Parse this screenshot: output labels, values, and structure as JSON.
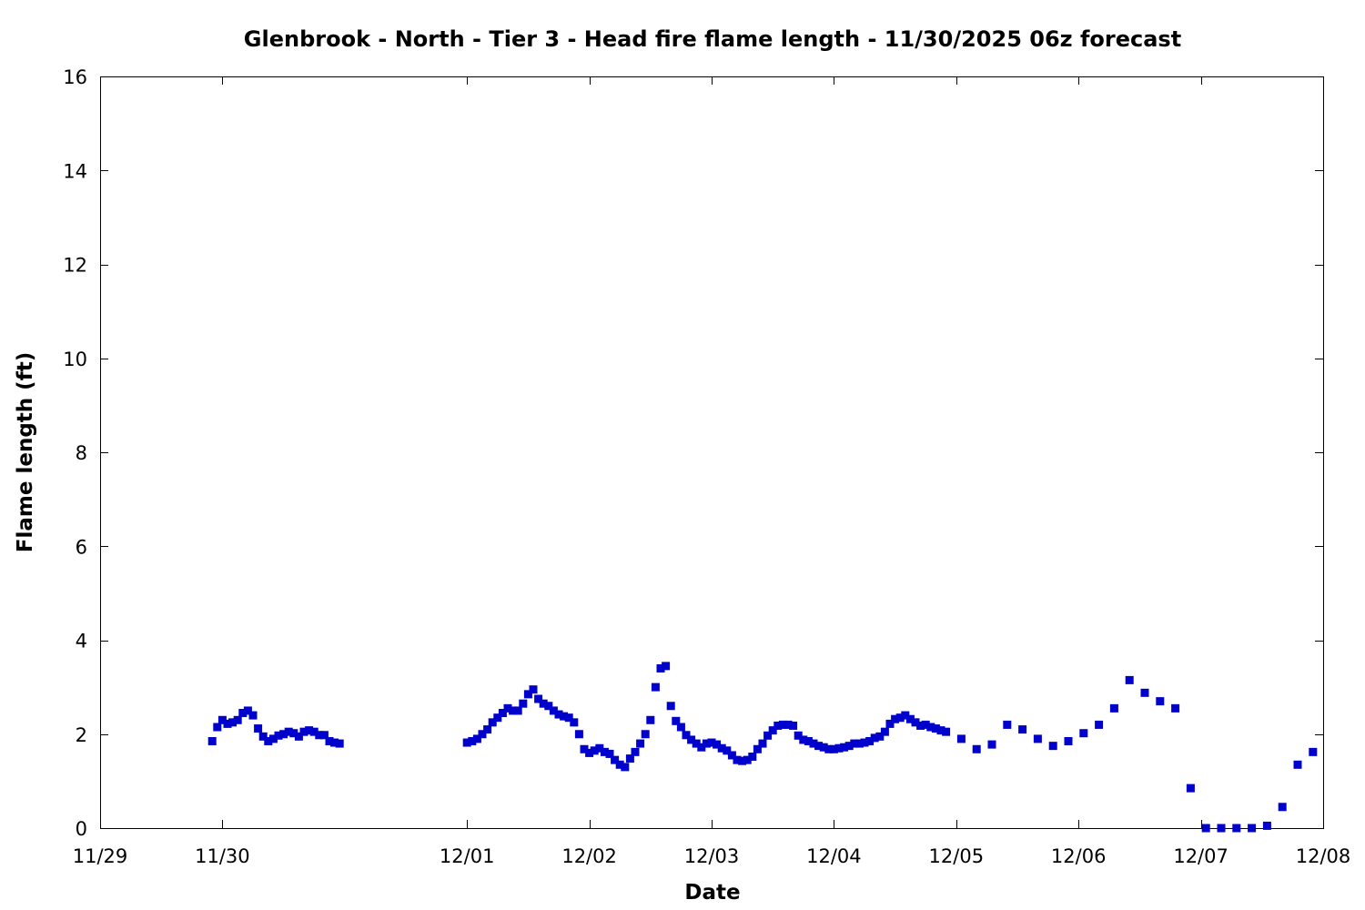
{
  "chart_data": {
    "type": "scatter",
    "title": "Glenbrook - North - Tier 3 - Head fire flame length - 11/30/2025 06z forecast",
    "xlabel": "Date",
    "ylabel": "Flame length (ft)",
    "xlim": [
      "11/29",
      "12/08"
    ],
    "ylim": [
      0,
      16
    ],
    "x_ticks": [
      "11/29",
      "11/30",
      "12/01",
      "12/02",
      "12/03",
      "12/04",
      "12/05",
      "12/06",
      "12/07",
      "12/08"
    ],
    "y_ticks": [
      0,
      2,
      4,
      6,
      8,
      10,
      12,
      14,
      16
    ],
    "grid": false,
    "legend": "none",
    "marker_color": "#0000cc",
    "marker": "square",
    "series": [
      {
        "points": [
          [
            "11/29 22:00",
            1.85
          ],
          [
            "11/29 23:00",
            2.15
          ],
          [
            "11/30 00:00",
            2.3
          ],
          [
            "11/30 01:00",
            2.22
          ],
          [
            "11/30 02:00",
            2.25
          ],
          [
            "11/30 03:00",
            2.3
          ],
          [
            "11/30 04:00",
            2.45
          ],
          [
            "11/30 05:00",
            2.5
          ],
          [
            "11/30 06:00",
            2.4
          ],
          [
            "11/30 07:00",
            2.12
          ],
          [
            "11/30 08:00",
            1.95
          ],
          [
            "11/30 09:00",
            1.85
          ],
          [
            "11/30 10:00",
            1.9
          ],
          [
            "11/30 11:00",
            1.97
          ],
          [
            "11/30 12:00",
            2.0
          ],
          [
            "11/30 13:00",
            2.05
          ],
          [
            "11/30 14:00",
            2.02
          ],
          [
            "11/30 15:00",
            1.95
          ],
          [
            "11/30 16:00",
            2.05
          ],
          [
            "11/30 17:00",
            2.08
          ],
          [
            "11/30 18:00",
            2.05
          ],
          [
            "11/30 19:00",
            1.98
          ],
          [
            "11/30 20:00",
            1.98
          ],
          [
            "11/30 21:00",
            1.85
          ],
          [
            "11/30 22:00",
            1.82
          ],
          [
            "11/30 23:00",
            1.8
          ],
          [
            "12/01 00:00",
            1.82
          ],
          [
            "12/01 01:00",
            1.85
          ],
          [
            "12/01 02:00",
            1.9
          ],
          [
            "12/01 03:00",
            2.0
          ],
          [
            "12/01 04:00",
            2.1
          ],
          [
            "12/01 05:00",
            2.25
          ],
          [
            "12/01 06:00",
            2.35
          ],
          [
            "12/01 07:00",
            2.45
          ],
          [
            "12/01 08:00",
            2.55
          ],
          [
            "12/01 09:00",
            2.5
          ],
          [
            "12/01 10:00",
            2.5
          ],
          [
            "12/01 11:00",
            2.65
          ],
          [
            "12/01 12:00",
            2.85
          ],
          [
            "12/01 13:00",
            2.95
          ],
          [
            "12/01 14:00",
            2.75
          ],
          [
            "12/01 15:00",
            2.65
          ],
          [
            "12/01 16:00",
            2.6
          ],
          [
            "12/01 17:00",
            2.5
          ],
          [
            "12/01 18:00",
            2.42
          ],
          [
            "12/01 19:00",
            2.38
          ],
          [
            "12/01 20:00",
            2.35
          ],
          [
            "12/01 21:00",
            2.25
          ],
          [
            "12/01 22:00",
            2.0
          ],
          [
            "12/01 23:00",
            1.68
          ],
          [
            "12/02 00:00",
            1.6
          ],
          [
            "12/02 01:00",
            1.65
          ],
          [
            "12/02 02:00",
            1.7
          ],
          [
            "12/02 03:00",
            1.62
          ],
          [
            "12/02 04:00",
            1.58
          ],
          [
            "12/02 05:00",
            1.45
          ],
          [
            "12/02 06:00",
            1.35
          ],
          [
            "12/02 07:00",
            1.3
          ],
          [
            "12/02 08:00",
            1.48
          ],
          [
            "12/02 09:00",
            1.62
          ],
          [
            "12/02 10:00",
            1.8
          ],
          [
            "12/02 11:00",
            2.0
          ],
          [
            "12/02 12:00",
            2.3
          ],
          [
            "12/02 13:00",
            3.0
          ],
          [
            "12/02 14:00",
            3.4
          ],
          [
            "12/02 15:00",
            3.45
          ],
          [
            "12/02 16:00",
            2.6
          ],
          [
            "12/02 17:00",
            2.28
          ],
          [
            "12/02 18:00",
            2.15
          ],
          [
            "12/02 19:00",
            1.98
          ],
          [
            "12/02 20:00",
            1.88
          ],
          [
            "12/02 21:00",
            1.8
          ],
          [
            "12/02 22:00",
            1.72
          ],
          [
            "12/02 23:00",
            1.8
          ],
          [
            "12/03 00:00",
            1.82
          ],
          [
            "12/03 01:00",
            1.78
          ],
          [
            "12/03 02:00",
            1.7
          ],
          [
            "12/03 03:00",
            1.65
          ],
          [
            "12/03 04:00",
            1.55
          ],
          [
            "12/03 05:00",
            1.45
          ],
          [
            "12/03 06:00",
            1.43
          ],
          [
            "12/03 07:00",
            1.45
          ],
          [
            "12/03 08:00",
            1.52
          ],
          [
            "12/03 09:00",
            1.68
          ],
          [
            "12/03 10:00",
            1.8
          ],
          [
            "12/03 11:00",
            1.97
          ],
          [
            "12/03 12:00",
            2.08
          ],
          [
            "12/03 13:00",
            2.18
          ],
          [
            "12/03 14:00",
            2.2
          ],
          [
            "12/03 15:00",
            2.2
          ],
          [
            "12/03 16:00",
            2.18
          ],
          [
            "12/03 17:00",
            1.97
          ],
          [
            "12/03 18:00",
            1.88
          ],
          [
            "12/03 19:00",
            1.85
          ],
          [
            "12/03 20:00",
            1.8
          ],
          [
            "12/03 21:00",
            1.75
          ],
          [
            "12/03 22:00",
            1.72
          ],
          [
            "12/03 23:00",
            1.68
          ],
          [
            "12/04 00:00",
            1.68
          ],
          [
            "12/04 01:00",
            1.7
          ],
          [
            "12/04 02:00",
            1.72
          ],
          [
            "12/04 03:00",
            1.75
          ],
          [
            "12/04 04:00",
            1.8
          ],
          [
            "12/04 05:00",
            1.8
          ],
          [
            "12/04 06:00",
            1.82
          ],
          [
            "12/04 07:00",
            1.85
          ],
          [
            "12/04 08:00",
            1.92
          ],
          [
            "12/04 09:00",
            1.95
          ],
          [
            "12/04 10:00",
            2.05
          ],
          [
            "12/04 11:00",
            2.22
          ],
          [
            "12/04 12:00",
            2.32
          ],
          [
            "12/04 13:00",
            2.35
          ],
          [
            "12/04 14:00",
            2.4
          ],
          [
            "12/04 15:00",
            2.32
          ],
          [
            "12/04 16:00",
            2.25
          ],
          [
            "12/04 17:00",
            2.18
          ],
          [
            "12/04 18:00",
            2.2
          ],
          [
            "12/04 19:00",
            2.15
          ],
          [
            "12/04 20:00",
            2.12
          ],
          [
            "12/04 21:00",
            2.08
          ],
          [
            "12/04 22:00",
            2.05
          ],
          [
            "12/05 01:00",
            1.9
          ],
          [
            "12/05 04:00",
            1.68
          ],
          [
            "12/05 07:00",
            1.78
          ],
          [
            "12/05 10:00",
            2.2
          ],
          [
            "12/05 13:00",
            2.1
          ],
          [
            "12/05 16:00",
            1.9
          ],
          [
            "12/05 19:00",
            1.75
          ],
          [
            "12/05 22:00",
            1.85
          ],
          [
            "12/06 01:00",
            2.02
          ],
          [
            "12/06 04:00",
            2.2
          ],
          [
            "12/06 07:00",
            2.55
          ],
          [
            "12/06 10:00",
            3.15
          ],
          [
            "12/06 13:00",
            2.88
          ],
          [
            "12/06 16:00",
            2.7
          ],
          [
            "12/06 19:00",
            2.55
          ],
          [
            "12/06 22:00",
            0.85
          ],
          [
            "12/07 01:00",
            0.0
          ],
          [
            "12/07 04:00",
            0.0
          ],
          [
            "12/07 07:00",
            0.0
          ],
          [
            "12/07 10:00",
            0.0
          ],
          [
            "12/07 13:00",
            0.05
          ],
          [
            "12/07 16:00",
            0.45
          ],
          [
            "12/07 19:00",
            1.35
          ],
          [
            "12/07 22:00",
            1.62
          ]
        ]
      }
    ]
  }
}
